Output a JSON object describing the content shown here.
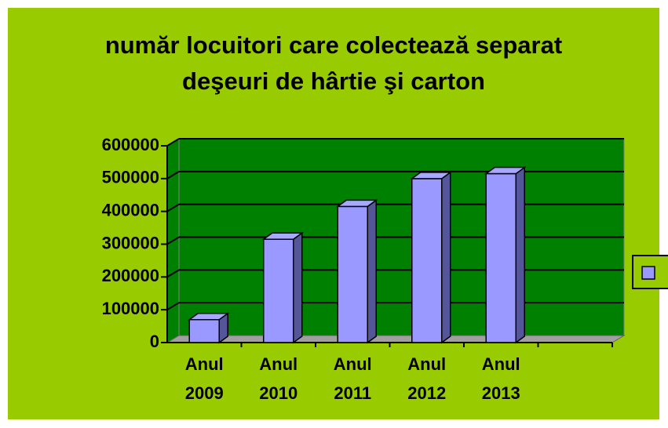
{
  "chart_data": {
    "type": "bar3d",
    "title": "număr locuitori care colectează separat deşeuri de hârtie şi carton",
    "categories": [
      "Anul 2009",
      "Anul 2010",
      "Anul 2011",
      "Anul 2012",
      "Anul 2013",
      null
    ],
    "values": [
      70000,
      315000,
      415000,
      500000,
      515000,
      null
    ],
    "color": "#9999ff",
    "ylim": [
      0,
      600000
    ],
    "yticks": [
      0,
      100000,
      200000,
      300000,
      400000,
      500000,
      600000
    ],
    "grid": true,
    "legend": "right"
  }
}
